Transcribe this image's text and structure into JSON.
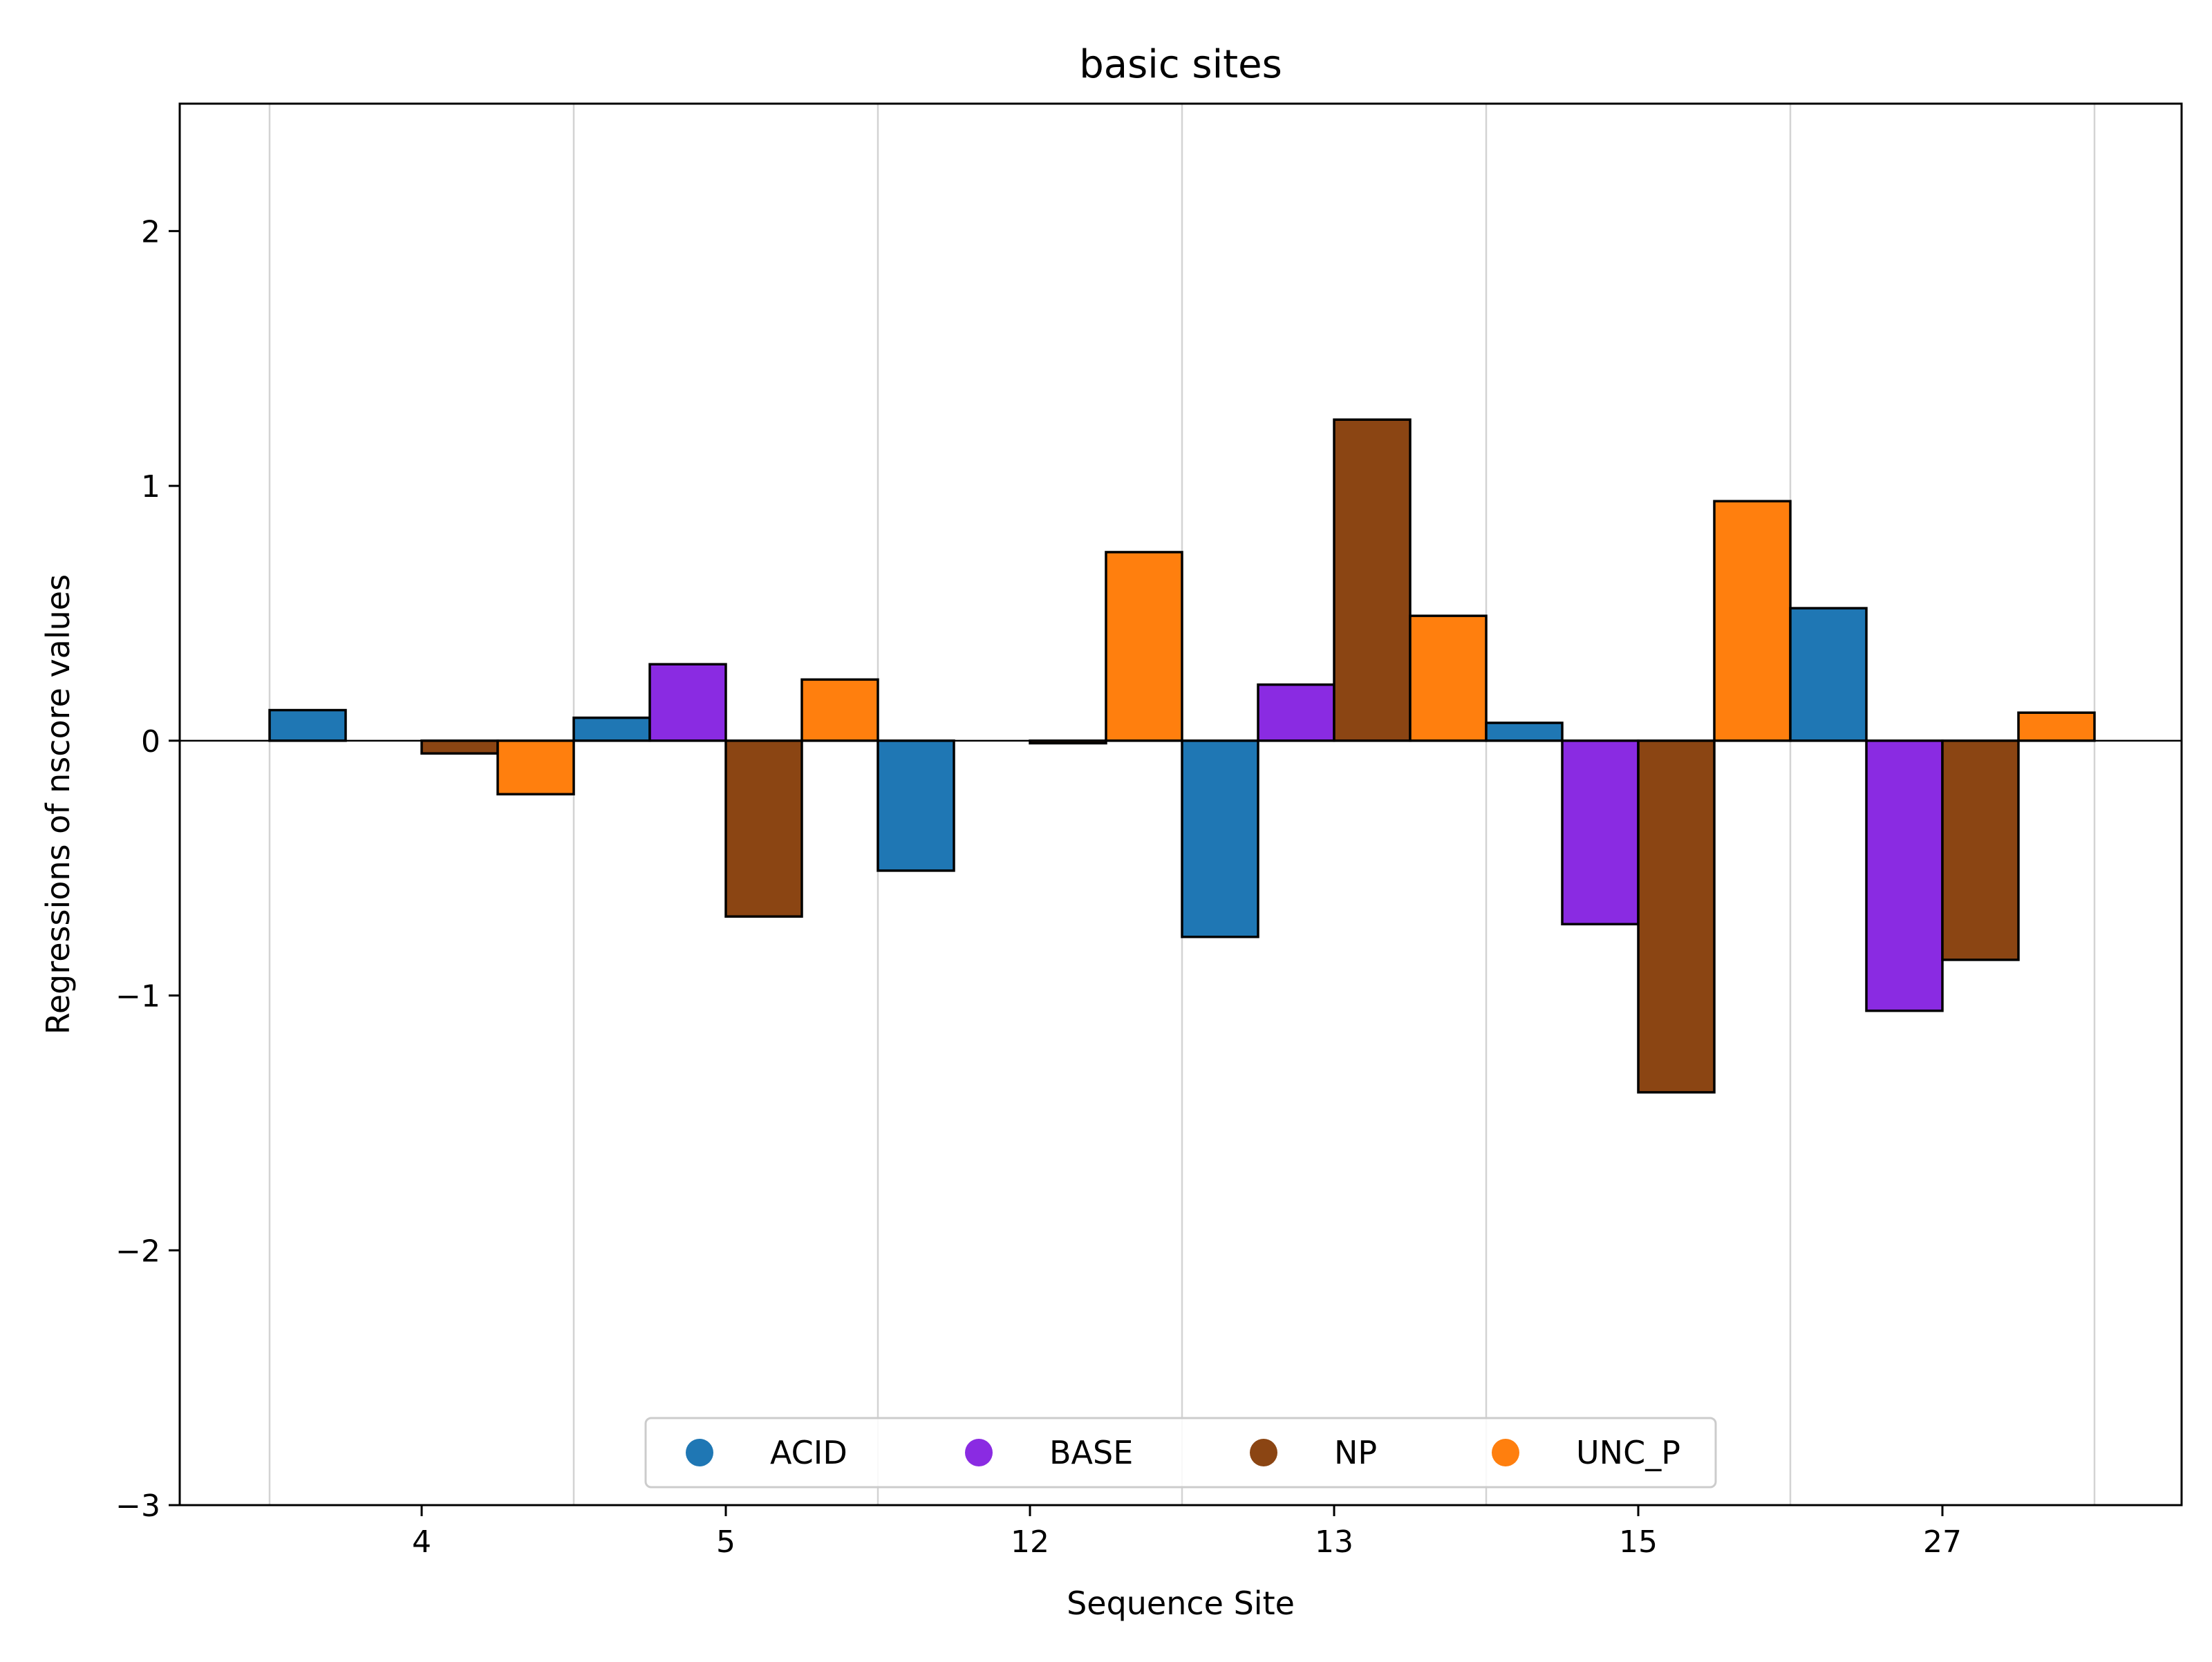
{
  "chart_data": {
    "type": "bar",
    "title": "basic sites",
    "xlabel": "Sequence Site",
    "ylabel": "Regressions of nscore values",
    "categories": [
      "4",
      "5",
      "12",
      "13",
      "15",
      "27"
    ],
    "series": [
      {
        "name": "ACID",
        "color": "#1f77b4",
        "values": [
          0.12,
          0.09,
          -0.51,
          -0.77,
          0.07,
          0.52
        ]
      },
      {
        "name": "BASE",
        "color": "#8a2be2",
        "values": [
          0.0,
          0.3,
          0.0,
          0.22,
          -0.72,
          -1.06
        ]
      },
      {
        "name": "NP",
        "color": "#8b4513",
        "values": [
          -0.05,
          -0.69,
          -0.01,
          1.26,
          -1.38,
          -0.86
        ]
      },
      {
        "name": "UNC_P",
        "color": "#ff7f0e",
        "values": [
          -0.21,
          0.24,
          0.74,
          0.49,
          0.94,
          0.11
        ]
      }
    ],
    "ylim": [
      -3,
      2.5
    ],
    "yticks": [
      -3,
      -2,
      -1,
      0,
      1,
      2
    ],
    "ytick_labels": [
      "−3",
      "−2",
      "−1",
      "0",
      "1",
      "2"
    ],
    "grid": "vertical",
    "legend_placement": "lower-center",
    "bar_edge_color": "#000000"
  }
}
